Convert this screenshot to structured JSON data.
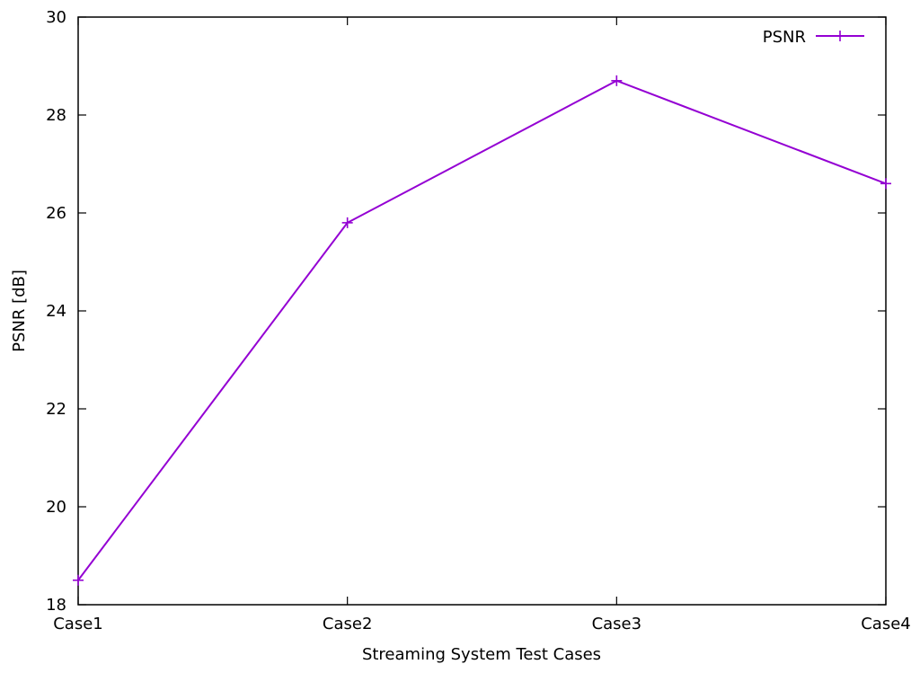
{
  "chart_data": {
    "type": "line",
    "title": "",
    "xlabel": "Streaming System Test Cases",
    "ylabel": "PSNR [dB]",
    "categories": [
      "Case1",
      "Case2",
      "Case3",
      "Case4"
    ],
    "ylim": [
      18,
      30
    ],
    "yticks": [
      "18",
      "20",
      "22",
      "24",
      "26",
      "28",
      "30"
    ],
    "grid": false,
    "legend_position": "top-right",
    "series": [
      {
        "name": "PSNR",
        "color": "#9400d3",
        "marker": "plus",
        "values": [
          18.5,
          25.8,
          28.7,
          26.6
        ]
      }
    ]
  }
}
